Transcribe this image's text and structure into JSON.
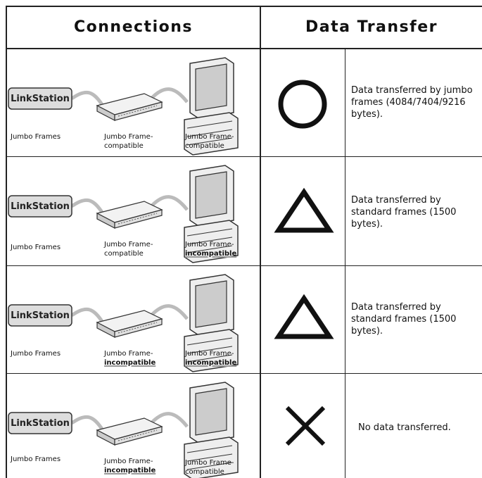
{
  "header": {
    "connections": "Connections",
    "data_transfer": "Data Transfer"
  },
  "rows": [
    {
      "linkstation": "LinkStation",
      "nas_label": "Jumbo Frames",
      "switch_label": [
        "Jumbo Frame-",
        "compatible"
      ],
      "pc_label": [
        "Jumbo Frame-",
        "compatible"
      ],
      "description": "Data transferred by jumbo frames (4084/7404/9216 bytes)."
    },
    {
      "linkstation": "LinkStation",
      "nas_label": "Jumbo Frames",
      "switch_label": [
        "Jumbo Frame-",
        "compatible"
      ],
      "pc_label": [
        "Jumbo Frame-",
        "incompatible"
      ],
      "description": "Data transferred by standard frames (1500 bytes)."
    },
    {
      "linkstation": "LinkStation",
      "nas_label": "Jumbo Frames",
      "switch_label": [
        "Jumbo Frame-",
        "incompatible"
      ],
      "pc_label": [
        "Jumbo Frame-",
        "incompatible"
      ],
      "description": "Data transferred by standard frames (1500 bytes)."
    },
    {
      "linkstation": "LinkStation",
      "nas_label": "Jumbo Frames",
      "switch_label": [
        "Jumbo Frame-",
        "incompatible"
      ],
      "pc_label": [
        "Jumbo Frame-",
        "compatible"
      ],
      "description": "No data transferred."
    }
  ]
}
